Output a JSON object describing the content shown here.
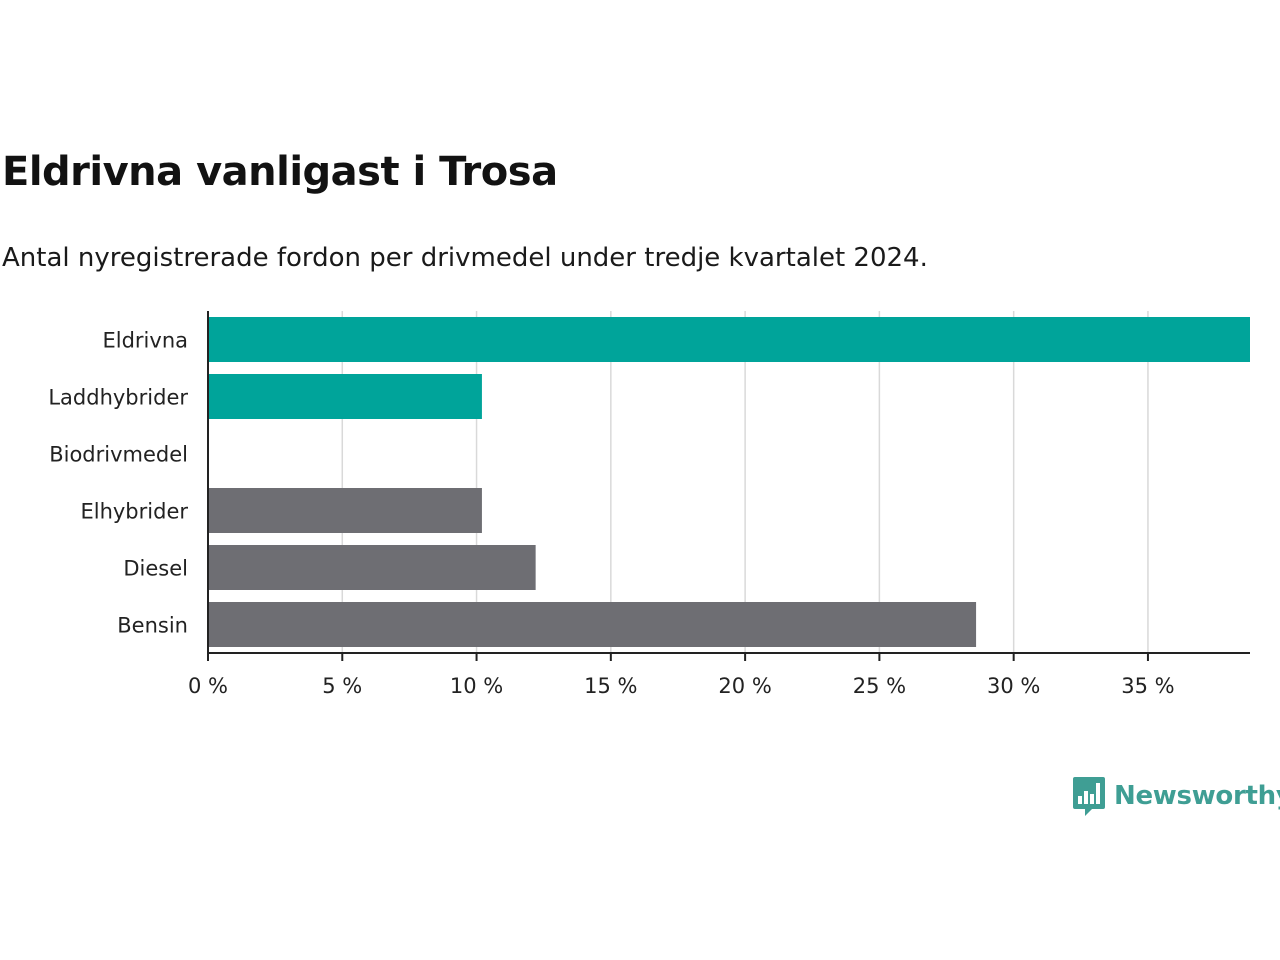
{
  "title": "Eldrivna vanligast i Trosa",
  "subtitle": "Antal nyregistrerade fordon per drivmedel under tredje kvartalet 2024.",
  "brand": {
    "name": "Newsworthy",
    "icon": "bar-chart-speech-bubble-icon",
    "color": "#3f9e94"
  },
  "chart_data": {
    "type": "bar",
    "orientation": "horizontal",
    "categories": [
      "Eldrivna",
      "Laddhybrider",
      "Biodrivmedel",
      "Elhybrider",
      "Diesel",
      "Bensin"
    ],
    "values": [
      38.8,
      10.2,
      0,
      10.2,
      12.2,
      28.6
    ],
    "colors": [
      "#00a49a",
      "#00a49a",
      "#00a49a",
      "#6e6e73",
      "#6e6e73",
      "#6e6e73"
    ],
    "xlim": [
      0,
      38.8
    ],
    "xticks": [
      0,
      5,
      10,
      15,
      20,
      25,
      30,
      35
    ],
    "xtick_labels": [
      "0 %",
      "5 %",
      "10 %",
      "15 %",
      "20 %",
      "25 %",
      "30 %",
      "35 %"
    ],
    "grid": "vertical",
    "gridline_color": "#d9d9d9",
    "axis_color": "#222222"
  }
}
